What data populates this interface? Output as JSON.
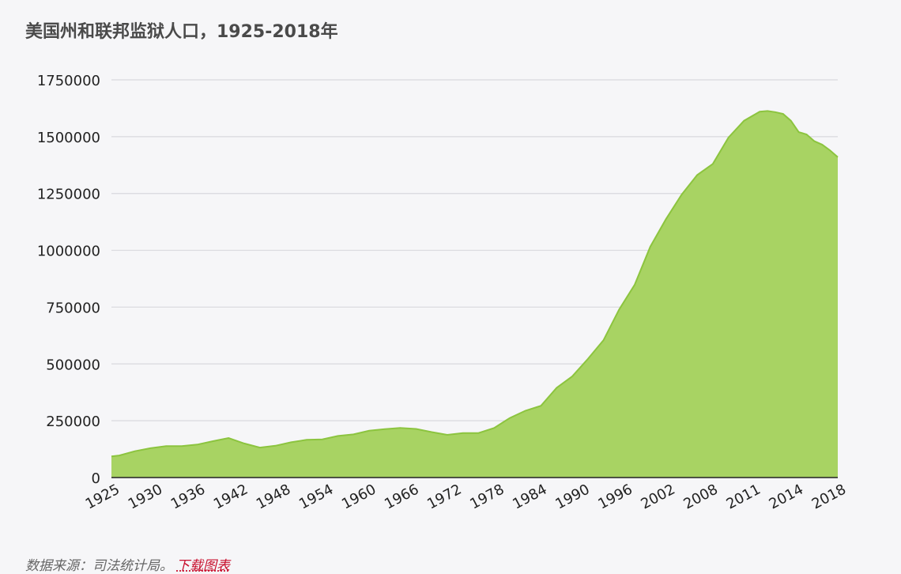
{
  "title": "美国州和联邦监狱人口，1925-2018年",
  "footer": {
    "source": "数据来源：司法统计局。",
    "download_label": "下载图表"
  },
  "colors": {
    "fill": "#a8d363",
    "stroke": "#8cc43f",
    "grid": "#d9d9de",
    "axis": "#222222"
  },
  "chart_data": {
    "type": "area",
    "title": "美国州和联邦监狱人口，1925-2018年",
    "xlabel": "",
    "ylabel": "",
    "ylim": [
      0,
      1750000
    ],
    "yticks": [
      0,
      250000,
      500000,
      750000,
      1000000,
      1250000,
      1500000,
      1750000
    ],
    "ytick_labels": [
      "0",
      "250000",
      "500000",
      "750000",
      "1000000",
      "1250000",
      "1500000",
      "1750000"
    ],
    "xtick_labels": [
      "1925",
      "1930",
      "1936",
      "1942",
      "1948",
      "1954",
      "1960",
      "1966",
      "1972",
      "1978",
      "1984",
      "1990",
      "1996",
      "2002",
      "2008",
      "2011",
      "2014",
      "2018"
    ],
    "grid": true,
    "x": [
      "1925",
      "1926",
      "1928",
      "1930",
      "1932",
      "1934",
      "1936",
      "1938",
      "1940",
      "1942",
      "1944",
      "1946",
      "1948",
      "1950",
      "1952",
      "1954",
      "1956",
      "1958",
      "1960",
      "1962",
      "1964",
      "1966",
      "1968",
      "1970",
      "1972",
      "1974",
      "1976",
      "1978",
      "1980",
      "1982",
      "1984",
      "1986",
      "1988",
      "1990",
      "1992",
      "1994",
      "1996",
      "1998",
      "2000",
      "2002",
      "2004",
      "2006",
      "2008",
      "2009",
      "2010",
      "2011",
      "2012",
      "2013",
      "2014",
      "2015",
      "2016",
      "2017",
      "2018"
    ],
    "values": [
      93000,
      97000,
      116000,
      129000,
      138000,
      138000,
      145000,
      160000,
      174000,
      150000,
      132000,
      140000,
      155000,
      166000,
      168000,
      183000,
      190000,
      206000,
      213000,
      218000,
      214000,
      200000,
      188000,
      196000,
      196000,
      218000,
      262000,
      294000,
      316000,
      395000,
      445000,
      522000,
      604000,
      739000,
      849000,
      1016000,
      1137000,
      1245000,
      1331000,
      1380000,
      1496000,
      1570000,
      1610000,
      1613000,
      1608000,
      1600000,
      1570000,
      1520000,
      1510000,
      1480000,
      1465000,
      1440000,
      1410000
    ]
  }
}
